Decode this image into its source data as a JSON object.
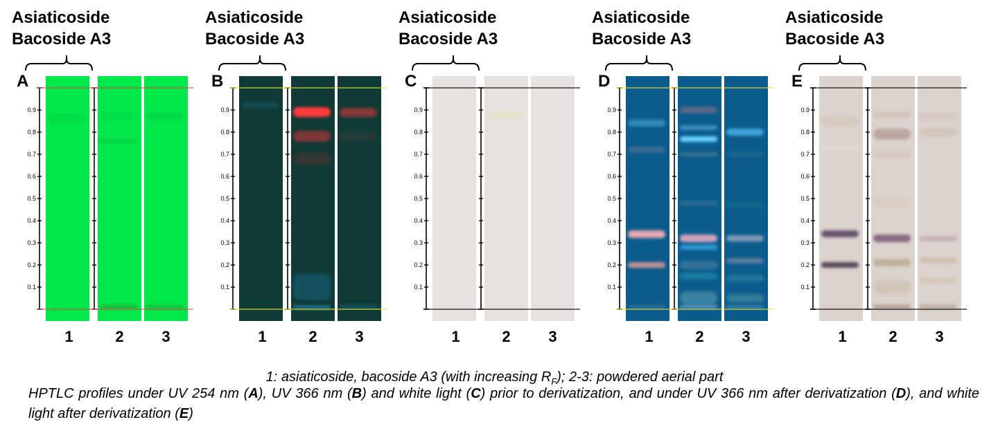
{
  "chart_data": {
    "type": "table",
    "title": "HPTLC profiles",
    "ylabel": "RF",
    "ylim": [
      0,
      1
    ],
    "yticks": [
      "0.1",
      "0.2",
      "0.3",
      "0.4",
      "0.5",
      "0.6",
      "0.7",
      "0.8",
      "0.9"
    ],
    "reference_label": [
      "Asiaticoside",
      "Bacoside A3"
    ],
    "lane_labels": [
      "1",
      "2",
      "3"
    ],
    "panels": [
      {
        "letter": "A",
        "condition": "UV 254 nm",
        "plate_color": "#00e84a",
        "line_color": "#d0504a",
        "lanes": [
          {
            "bands": [
              {
                "rf": 0.86,
                "color": "#00c93e",
                "intensity": 0.35,
                "width": 0.04
              }
            ]
          },
          {
            "bands": [
              {
                "rf": 0.87,
                "color": "#00c93e",
                "intensity": 0.3,
                "width": 0.04
              },
              {
                "rf": 0.76,
                "color": "#00b83a",
                "intensity": 0.45,
                "width": 0.02
              },
              {
                "rf": 0.01,
                "color": "#3a8a30",
                "intensity": 0.6,
                "width": 0.015
              }
            ]
          },
          {
            "bands": [
              {
                "rf": 0.87,
                "color": "#00c93e",
                "intensity": 0.4,
                "width": 0.04
              },
              {
                "rf": 0.01,
                "color": "#3a8a30",
                "intensity": 0.5,
                "width": 0.015
              }
            ]
          }
        ]
      },
      {
        "letter": "B",
        "condition": "UV 366 nm",
        "plate_color": "#0f3a36",
        "line_color": "#e8e23a",
        "lanes": [
          {
            "bands": [
              {
                "rf": 0.92,
                "color": "#1a5a6a",
                "intensity": 0.5,
                "width": 0.03
              }
            ]
          },
          {
            "bands": [
              {
                "rf": 0.89,
                "color": "#ff3b3b",
                "intensity": 1.0,
                "width": 0.045
              },
              {
                "rf": 0.78,
                "color": "#c03535",
                "intensity": 0.6,
                "width": 0.05
              },
              {
                "rf": 0.68,
                "color": "#7a3030",
                "intensity": 0.35,
                "width": 0.06
              },
              {
                "rf": 0.1,
                "color": "#1a6a8a",
                "intensity": 0.5,
                "width": 0.12
              },
              {
                "rf": 0.01,
                "color": "#2a8ab0",
                "intensity": 0.7,
                "width": 0.02
              }
            ]
          },
          {
            "bands": [
              {
                "rf": 0.89,
                "color": "#b83838",
                "intensity": 0.7,
                "width": 0.04
              },
              {
                "rf": 0.78,
                "color": "#5a3a3a",
                "intensity": 0.3,
                "width": 0.04
              },
              {
                "rf": 0.01,
                "color": "#1a6a8a",
                "intensity": 0.6,
                "width": 0.015
              }
            ]
          }
        ]
      },
      {
        "letter": "C",
        "condition": "white light, prior to derivatization",
        "plate_color": "#e6e2df",
        "line_color": "#000000",
        "lanes": [
          {
            "bands": []
          },
          {
            "bands": [
              {
                "rf": 0.88,
                "color": "#e2e2c4",
                "intensity": 0.8,
                "width": 0.03
              },
              {
                "rf": 0.01,
                "color": "#e2dcc8",
                "intensity": 0.5,
                "width": 0.02
              }
            ]
          },
          {
            "bands": []
          }
        ]
      },
      {
        "letter": "D",
        "condition": "UV 366 nm, after derivatization",
        "plate_color": "#0b5c8c",
        "line_color": "#e8e23a",
        "lanes": [
          {
            "bands": [
              {
                "rf": 0.84,
                "color": "#4aa8d8",
                "intensity": 0.6,
                "width": 0.03
              },
              {
                "rf": 0.72,
                "color": "#6a7898",
                "intensity": 0.5,
                "width": 0.03
              },
              {
                "rf": 0.34,
                "color": "#e8a8b0",
                "intensity": 1.0,
                "width": 0.035
              },
              {
                "rf": 0.2,
                "color": "#d89898",
                "intensity": 0.9,
                "width": 0.025
              },
              {
                "rf": 0.01,
                "color": "#6a88a8",
                "intensity": 0.6,
                "width": 0.01
              }
            ]
          },
          {
            "bands": [
              {
                "rf": 0.9,
                "color": "#8a7088",
                "intensity": 0.6,
                "width": 0.03
              },
              {
                "rf": 0.82,
                "color": "#5ab0e8",
                "intensity": 0.6,
                "width": 0.02
              },
              {
                "rf": 0.77,
                "color": "#6ad0ff",
                "intensity": 1.0,
                "width": 0.025
              },
              {
                "rf": 0.7,
                "color": "#6a8a98",
                "intensity": 0.5,
                "width": 0.02
              },
              {
                "rf": 0.48,
                "color": "#4a7898",
                "intensity": 0.5,
                "width": 0.02
              },
              {
                "rf": 0.32,
                "color": "#d8a8c0",
                "intensity": 0.95,
                "width": 0.035
              },
              {
                "rf": 0.28,
                "color": "#3aa8e8",
                "intensity": 0.8,
                "width": 0.02
              },
              {
                "rf": 0.2,
                "color": "#5a88a8",
                "intensity": 0.5,
                "width": 0.04
              },
              {
                "rf": 0.15,
                "color": "#2a98b8",
                "intensity": 0.5,
                "width": 0.03
              },
              {
                "rf": 0.05,
                "color": "#6aa8b8",
                "intensity": 0.5,
                "width": 0.06
              },
              {
                "rf": 0.01,
                "color": "#b8d8e8",
                "intensity": 0.7,
                "width": 0.01
              }
            ]
          },
          {
            "bands": [
              {
                "rf": 0.8,
                "color": "#4ab8e8",
                "intensity": 0.8,
                "width": 0.03
              },
              {
                "rf": 0.7,
                "color": "#3a7898",
                "intensity": 0.4,
                "width": 0.02
              },
              {
                "rf": 0.47,
                "color": "#1a7a88",
                "intensity": 0.4,
                "width": 0.03
              },
              {
                "rf": 0.32,
                "color": "#9aa8c0",
                "intensity": 0.8,
                "width": 0.03
              },
              {
                "rf": 0.22,
                "color": "#7a88a8",
                "intensity": 0.7,
                "width": 0.025
              },
              {
                "rf": 0.14,
                "color": "#3a8aa8",
                "intensity": 0.5,
                "width": 0.03
              },
              {
                "rf": 0.05,
                "color": "#5a98a8",
                "intensity": 0.5,
                "width": 0.04
              },
              {
                "rf": 0.01,
                "color": "#8ab8c8",
                "intensity": 0.6,
                "width": 0.01
              }
            ]
          }
        ]
      },
      {
        "letter": "E",
        "condition": "white light, after derivatization",
        "plate_color": "#dbd3cd",
        "line_color": "#000000",
        "lanes": [
          {
            "bands": [
              {
                "rf": 0.85,
                "color": "#d0c0b8",
                "intensity": 0.5,
                "width": 0.05
              },
              {
                "rf": 0.73,
                "color": "#e4e2e2",
                "intensity": 0.7,
                "width": 0.015
              },
              {
                "rf": 0.34,
                "color": "#6a5470",
                "intensity": 1.0,
                "width": 0.03
              },
              {
                "rf": 0.2,
                "color": "#564a5a",
                "intensity": 1.0,
                "width": 0.025
              },
              {
                "rf": 0.01,
                "color": "#c8bcb4",
                "intensity": 0.6,
                "width": 0.008
              }
            ]
          },
          {
            "bands": [
              {
                "rf": 0.88,
                "color": "#cbb8ad",
                "intensity": 0.6,
                "width": 0.03
              },
              {
                "rf": 0.79,
                "color": "#b69c98",
                "intensity": 0.8,
                "width": 0.05
              },
              {
                "rf": 0.7,
                "color": "#d0c0b4",
                "intensity": 0.5,
                "width": 0.03
              },
              {
                "rf": 0.48,
                "color": "#d4c8b8",
                "intensity": 0.5,
                "width": 0.04
              },
              {
                "rf": 0.32,
                "color": "#8a6a84",
                "intensity": 1.0,
                "width": 0.035
              },
              {
                "rf": 0.21,
                "color": "#bba890",
                "intensity": 0.8,
                "width": 0.035
              },
              {
                "rf": 0.1,
                "color": "#c8b8a8",
                "intensity": 0.5,
                "width": 0.06
              },
              {
                "rf": 0.01,
                "color": "#a08a7a",
                "intensity": 0.8,
                "width": 0.015
              }
            ]
          },
          {
            "bands": [
              {
                "rf": 0.87,
                "color": "#d0c0b8",
                "intensity": 0.5,
                "width": 0.04
              },
              {
                "rf": 0.8,
                "color": "#c8b8ac",
                "intensity": 0.5,
                "width": 0.04
              },
              {
                "rf": 0.32,
                "color": "#c0a8b0",
                "intensity": 0.7,
                "width": 0.025
              },
              {
                "rf": 0.22,
                "color": "#ccbaa4",
                "intensity": 0.7,
                "width": 0.03
              },
              {
                "rf": 0.13,
                "color": "#d0c0ac",
                "intensity": 0.6,
                "width": 0.03
              },
              {
                "rf": 0.01,
                "color": "#a89080",
                "intensity": 0.7,
                "width": 0.015
              }
            ]
          }
        ]
      }
    ]
  },
  "captions": {
    "lanes_legend": {
      "prefix": "1: asiaticoside, bacoside A3 (with increasing R",
      "subscript": "F",
      "suffix": "); 2-3: powdered aerial part"
    },
    "description_parts": [
      {
        "text": "HPTLC profiles under UV 254 nm (",
        "bold": false
      },
      {
        "text": "A",
        "bold": true
      },
      {
        "text": "), UV 366 nm (",
        "bold": false
      },
      {
        "text": "B",
        "bold": true
      },
      {
        "text": ") and white light (",
        "bold": false
      },
      {
        "text": "C",
        "bold": true
      },
      {
        "text": ") prior to derivatization, and under UV 366 nm after derivatization (",
        "bold": false
      },
      {
        "text": "D",
        "bold": true
      },
      {
        "text": "), and white light after derivatization (",
        "bold": false
      },
      {
        "text": "E",
        "bold": true
      },
      {
        "text": ")",
        "bold": false
      }
    ]
  }
}
